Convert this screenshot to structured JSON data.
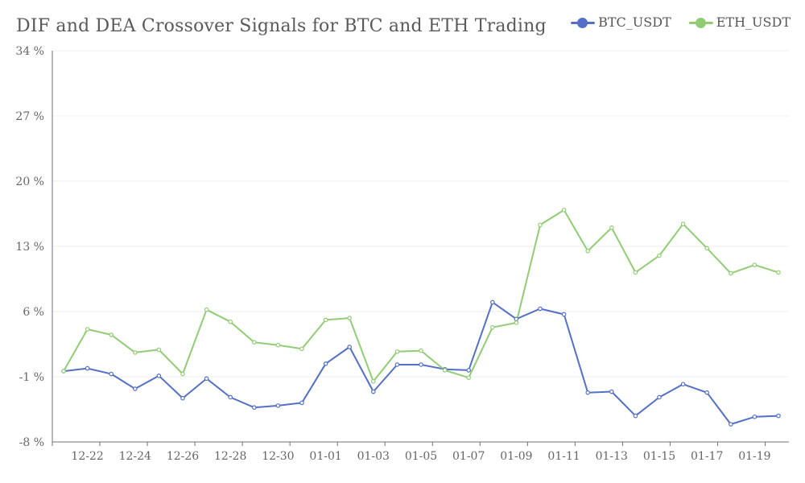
{
  "chart_data": {
    "type": "line",
    "title": "DIF and DEA Crossover Signals for BTC and ETH Trading",
    "y_ticks": [
      "34 %",
      "27 %",
      "20 %",
      "13 %",
      "6 %",
      "-1 %",
      "-8 %"
    ],
    "y_tick_values": [
      34,
      27,
      20,
      13,
      6,
      -1,
      -8
    ],
    "ylim": [
      -8,
      34
    ],
    "x_tick_labels": [
      "12-22",
      "12-24",
      "12-26",
      "12-28",
      "12-30",
      "01-01",
      "01-03",
      "01-05",
      "01-07",
      "01-09",
      "01-11",
      "01-13",
      "01-15",
      "01-17",
      "01-19"
    ],
    "x": [
      "12-21",
      "12-22",
      "12-23",
      "12-24",
      "12-25",
      "12-26",
      "12-27",
      "12-28",
      "12-29",
      "12-30",
      "12-31",
      "01-01",
      "01-02",
      "01-03",
      "01-04",
      "01-05",
      "01-06",
      "01-07",
      "01-08",
      "01-09",
      "01-10",
      "01-11",
      "01-12",
      "01-13",
      "01-14",
      "01-15",
      "01-16",
      "01-17",
      "01-18",
      "01-19",
      "01-20"
    ],
    "grid": true,
    "legend_position": "top-right",
    "series": [
      {
        "name": "BTC_USDT",
        "color": "#5470c6",
        "values": [
          -0.4,
          -0.1,
          -0.7,
          -2.3,
          -0.9,
          -3.3,
          -1.2,
          -3.2,
          -4.3,
          -4.1,
          -3.8,
          0.4,
          2.2,
          -2.6,
          0.3,
          0.3,
          -0.2,
          -0.3,
          7.0,
          5.2,
          6.3,
          5.7,
          -2.7,
          -2.6,
          -5.2,
          -3.2,
          -1.8,
          -2.7,
          -6.1,
          -5.3,
          -5.2
        ]
      },
      {
        "name": "ETH_USDT",
        "color": "#91cc75",
        "values": [
          -0.4,
          4.1,
          3.5,
          1.6,
          1.9,
          -0.7,
          6.2,
          4.9,
          2.7,
          2.4,
          2.0,
          5.1,
          5.3,
          -1.5,
          1.7,
          1.8,
          -0.3,
          -1.1,
          4.3,
          4.8,
          15.3,
          16.9,
          12.5,
          15.0,
          10.2,
          12.0,
          15.4,
          12.8,
          10.1,
          11.0,
          10.2
        ]
      }
    ]
  }
}
